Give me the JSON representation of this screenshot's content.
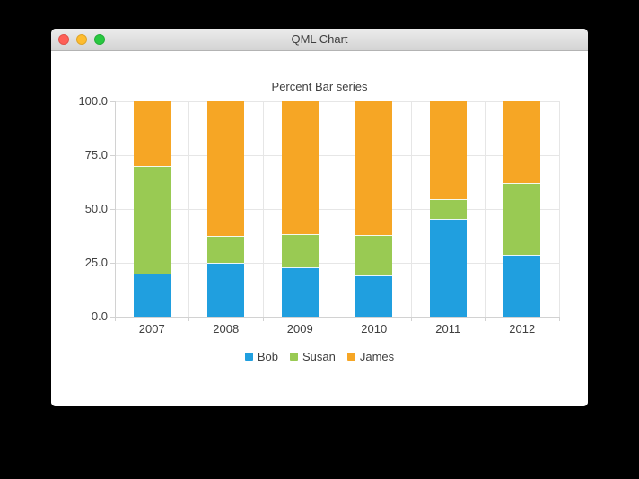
{
  "window": {
    "title": "QML Chart",
    "traffic_lights": [
      {
        "name": "close",
        "color": "#ff5f57"
      },
      {
        "name": "minimize",
        "color": "#febc2e"
      },
      {
        "name": "zoom",
        "color": "#28c840"
      }
    ]
  },
  "chart_data": {
    "type": "bar",
    "variant": "percent-stacked",
    "title": "Percent Bar series",
    "categories": [
      "2007",
      "2008",
      "2009",
      "2010",
      "2011",
      "2012"
    ],
    "series": [
      {
        "name": "Bob",
        "color": "#209fdf",
        "values": [
          20.0,
          25.0,
          23.1,
          19.0,
          45.5,
          28.6
        ]
      },
      {
        "name": "Susan",
        "color": "#99ca53",
        "values": [
          50.0,
          12.5,
          15.4,
          19.1,
          9.1,
          33.3
        ]
      },
      {
        "name": "James",
        "color": "#f6a625",
        "values": [
          30.0,
          62.5,
          61.5,
          61.9,
          45.4,
          38.1
        ]
      }
    ],
    "xlabel": "",
    "ylabel": "",
    "y_ticks": [
      "0.0",
      "25.0",
      "50.0",
      "75.0",
      "100.0"
    ],
    "ylim": [
      0,
      100
    ],
    "grid": true,
    "legend_position": "bottom",
    "text_color": "#404040",
    "grid_color": "#e6e6e6",
    "axis_color": "#d2d2d2",
    "separator_color": "rgba(255,255,255,0.9)"
  }
}
